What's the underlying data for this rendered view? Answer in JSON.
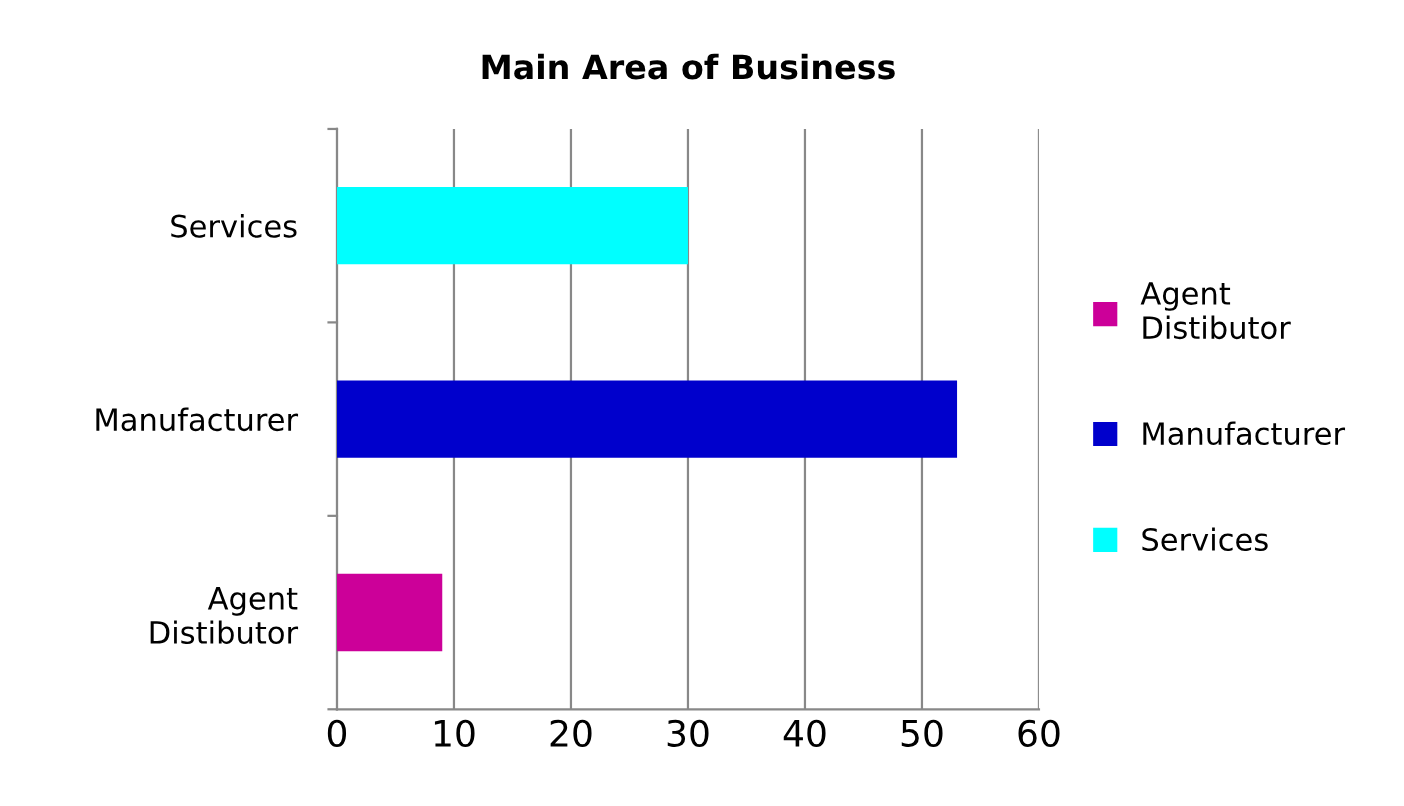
{
  "chart_data": {
    "type": "bar",
    "orientation": "horizontal",
    "title": "Main Area of Business",
    "categories": [
      "Services",
      "Manufacturer",
      "Agent\nDistibutor"
    ],
    "series": [
      {
        "name": "Agent\nDistibutor",
        "color": "#cc0099",
        "values": [
          null,
          null,
          9
        ]
      },
      {
        "name": "Manufacturer",
        "color": "#0000cc",
        "values": [
          null,
          53,
          null
        ]
      },
      {
        "name": "Services",
        "color": "#00ffff",
        "values": [
          30,
          null,
          null
        ]
      }
    ],
    "xlim": [
      0,
      60
    ],
    "xticks": [
      0,
      10,
      20,
      30,
      40,
      50,
      60
    ],
    "grid": "x",
    "legend": "right"
  }
}
